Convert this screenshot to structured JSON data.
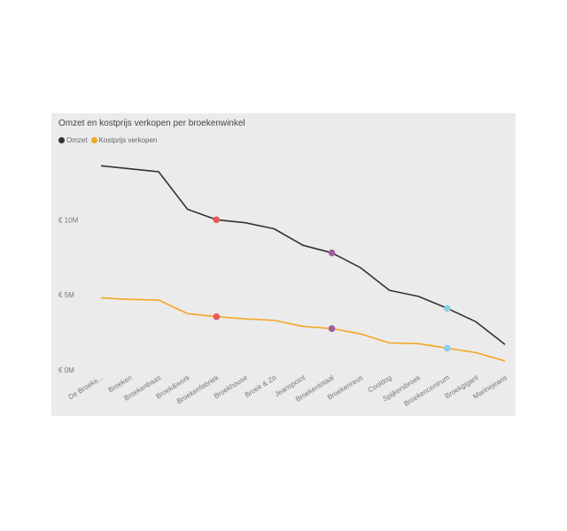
{
  "chart_data": {
    "type": "line",
    "title": "Omzet en kostprijs verkopen per broekenwinkel",
    "xlabel": "",
    "ylabel": "",
    "categories": [
      "De Broeke...",
      "Broeken",
      "Broekenbaas",
      "Broek&work",
      "Broekenfabriek",
      "Broekhouse",
      "Broek & Zo",
      "Jeanspoint",
      "Broekentotaal",
      "Broekenreus",
      "Cooldog",
      "Spijkersbroek",
      "Broekencentrum",
      "Broekgigant",
      "Marinejeans"
    ],
    "y_ticks": [
      {
        "value": 0,
        "label": "€ 0M"
      },
      {
        "value": 5000000,
        "label": "€ 5M"
      },
      {
        "value": 10000000,
        "label": "€ 10M"
      }
    ],
    "ylim": [
      0,
      14500000
    ],
    "legend_position": "top-left",
    "grid": false,
    "series": [
      {
        "name": "Omzet",
        "color": "#333333",
        "values": [
          13600000,
          13400000,
          13200000,
          10700000,
          10000000,
          9800000,
          9400000,
          8300000,
          7800000,
          6800000,
          5300000,
          4900000,
          4100000,
          3200000,
          1700000
        ]
      },
      {
        "name": "Kostprijs verkopen",
        "color": "#f5a623",
        "values": [
          4800000,
          4700000,
          4650000,
          3750000,
          3550000,
          3400000,
          3300000,
          2900000,
          2750000,
          2400000,
          1800000,
          1750000,
          1450000,
          1150000,
          600000
        ]
      }
    ],
    "highlights": [
      {
        "index": 4,
        "color": "#e85a5a"
      },
      {
        "index": 8,
        "color": "#9b5fa0"
      },
      {
        "index": 12,
        "color": "#8ecfe8"
      }
    ]
  }
}
